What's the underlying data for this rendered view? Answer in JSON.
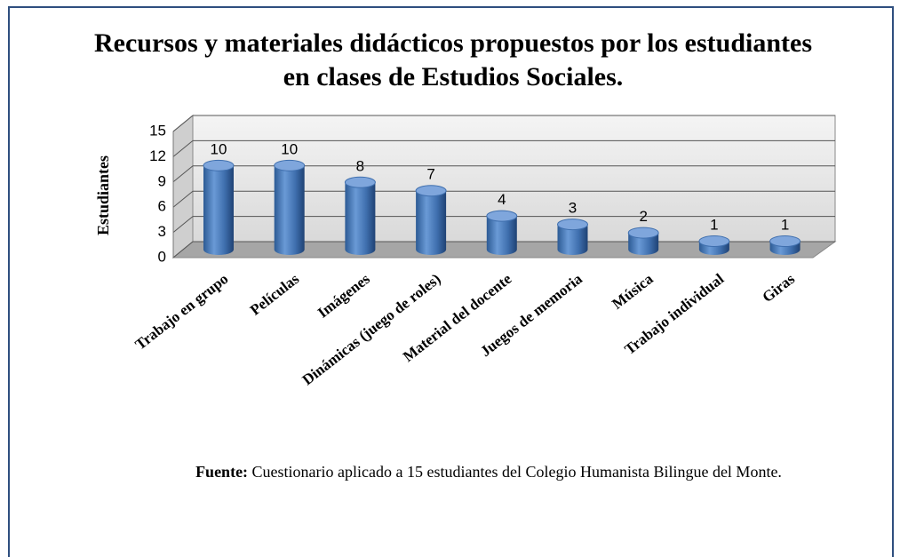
{
  "chart_data": {
    "type": "bar3d",
    "title": "Recursos y materiales didácticos propuestos por los estudiantes en clases de Estudios Sociales.",
    "y_label": "Estudiantes",
    "categories": [
      "Trabajo en grupo",
      "Películas",
      "Imágenes",
      "Dinámicas (juego de roles)",
      "Material del docente",
      "Juegos de memoria",
      "Música",
      "Trabajo individual",
      "Giras"
    ],
    "values": [
      10,
      10,
      8,
      7,
      4,
      3,
      2,
      1,
      1
    ],
    "color": "#4f81bd",
    "ylim": [
      0,
      15
    ],
    "yticks": [
      0,
      3,
      6,
      9,
      12,
      15
    ],
    "grid": true,
    "source_label": "Fuente:",
    "source_text": "Cuestionario aplicado a 15 estudiantes del Colegio Humanista Bilingue del Monte."
  }
}
